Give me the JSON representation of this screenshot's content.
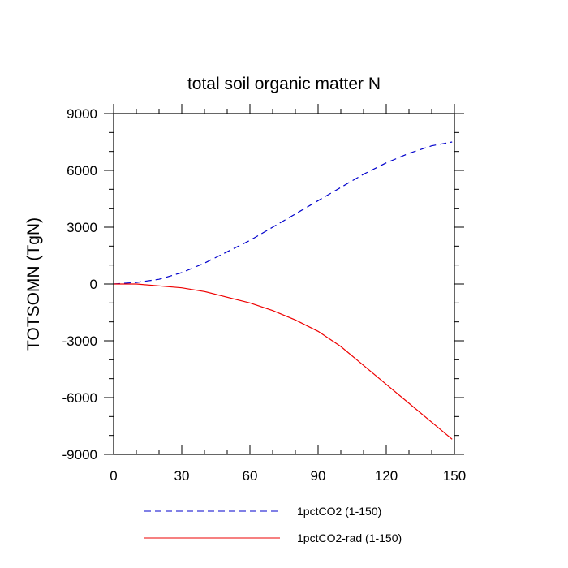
{
  "chart_data": {
    "type": "line",
    "title": "total soil organic matter N",
    "xlabel": "",
    "ylabel": "TOTSOMN  (TgN)",
    "xlim": [
      0,
      150
    ],
    "ylim": [
      -9000,
      9000
    ],
    "x_ticks": [
      0,
      30,
      60,
      90,
      120,
      150
    ],
    "y_ticks": [
      9000,
      6000,
      3000,
      0,
      -3000,
      -6000,
      -9000
    ],
    "x_tick_labels": [
      "0",
      "30",
      "60",
      "90",
      "120",
      "150"
    ],
    "y_tick_labels": [
      "9000",
      "6000",
      "3000",
      "0",
      "-3000",
      "-6000",
      "-9000"
    ],
    "grid": false,
    "legend_position": "bottom",
    "x": [
      0,
      10,
      20,
      30,
      40,
      50,
      60,
      70,
      80,
      90,
      100,
      110,
      120,
      130,
      140,
      149
    ],
    "series": [
      {
        "name": "1pctCO2 (1-150)",
        "color": "#0000cc",
        "style": "dashed",
        "values": [
          0,
          80,
          250,
          600,
          1100,
          1700,
          2300,
          3000,
          3700,
          4400,
          5100,
          5800,
          6400,
          6900,
          7300,
          7500
        ]
      },
      {
        "name": "1pctCO2-rad (1-150)",
        "color": "#ee0000",
        "style": "solid",
        "values": [
          0,
          0,
          -100,
          -200,
          -400,
          -700,
          -1000,
          -1400,
          -1900,
          -2500,
          -3300,
          -4300,
          -5300,
          -6300,
          -7300,
          -8200
        ]
      }
    ]
  }
}
